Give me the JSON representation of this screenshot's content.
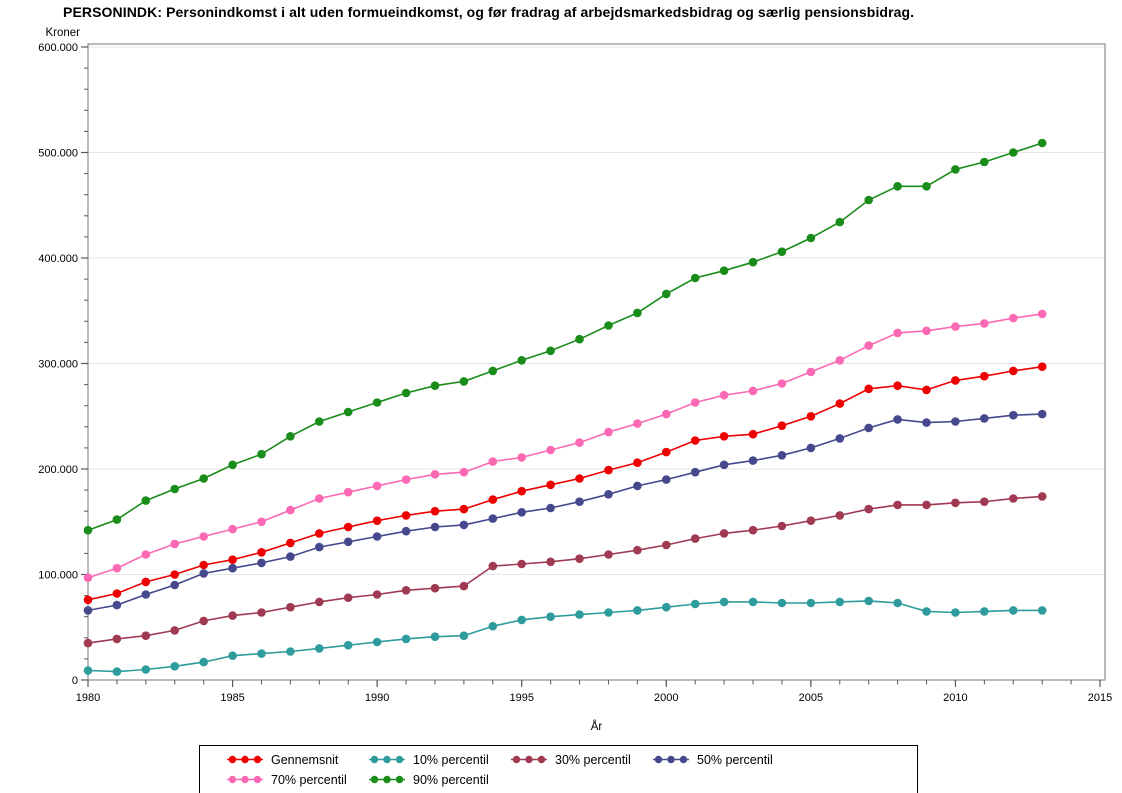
{
  "title": "PERSONINDK: Personindkomst i alt uden formueindkomst, og før fradrag af arbejdsmarkedsbidrag og særlig pensionsbidrag.",
  "chart_data": {
    "type": "line",
    "title": "PERSONINDK: Personindkomst i alt uden formueindkomst, og før fradrag af arbejdsmarkedsbidrag og særlig pensionsbidrag.",
    "xlabel": "År",
    "ylabel": "Kroner",
    "grid": "horizontal",
    "legend_position": "bottom",
    "xlim": [
      1980,
      2015
    ],
    "ylim": [
      0,
      600000
    ],
    "x_major_ticks": [
      1980,
      1985,
      1990,
      1995,
      2000,
      2005,
      2010,
      2015
    ],
    "y_major_tick_values": [
      0,
      100000,
      200000,
      300000,
      400000,
      500000,
      600000
    ],
    "y_major_tick_labels": [
      "0",
      "100.000",
      "200.000",
      "300.000",
      "400.000",
      "500.000",
      "600.000"
    ],
    "y_minor_tick_step": 20000,
    "years": [
      1980,
      1981,
      1982,
      1983,
      1984,
      1985,
      1986,
      1987,
      1988,
      1989,
      1990,
      1991,
      1992,
      1993,
      1994,
      1995,
      1996,
      1997,
      1998,
      1999,
      2000,
      2001,
      2002,
      2003,
      2004,
      2005,
      2006,
      2007,
      2008,
      2009,
      2010,
      2011,
      2012,
      2013
    ],
    "series": [
      {
        "name": "Gennemsnit",
        "color": "#EE0000",
        "values": [
          76000,
          82000,
          93000,
          100000,
          109000,
          114000,
          121000,
          130000,
          139000,
          145000,
          151000,
          156000,
          160000,
          162000,
          171000,
          179000,
          185000,
          191000,
          199000,
          206000,
          216000,
          227000,
          231000,
          233000,
          241000,
          250000,
          262000,
          276000,
          279000,
          275000,
          284000,
          288000,
          293000,
          297000
        ]
      },
      {
        "name": "10% percentil",
        "color": "#2E9C9C",
        "values": [
          9000,
          8000,
          10000,
          13000,
          17000,
          23000,
          25000,
          27000,
          30000,
          33000,
          36000,
          39000,
          41000,
          42000,
          51000,
          57000,
          60000,
          62000,
          64000,
          66000,
          69000,
          72000,
          74000,
          74000,
          73000,
          73000,
          74000,
          75000,
          73000,
          65000,
          64000,
          65000,
          66000,
          66000
        ]
      },
      {
        "name": "30% percentil",
        "color": "#A03A52",
        "values": [
          35000,
          39000,
          42000,
          47000,
          56000,
          61000,
          64000,
          69000,
          74000,
          78000,
          81000,
          85000,
          87000,
          89000,
          108000,
          110000,
          112000,
          115000,
          119000,
          123000,
          128000,
          134000,
          139000,
          142000,
          146000,
          151000,
          156000,
          162000,
          166000,
          166000,
          168000,
          169000,
          172000,
          174000
        ]
      },
      {
        "name": "50% percentil",
        "color": "#45488C",
        "values": [
          66000,
          71000,
          81000,
          90000,
          101000,
          106000,
          111000,
          117000,
          126000,
          131000,
          136000,
          141000,
          145000,
          147000,
          153000,
          159000,
          163000,
          169000,
          176000,
          184000,
          190000,
          197000,
          204000,
          208000,
          213000,
          220000,
          229000,
          239000,
          247000,
          244000,
          245000,
          248000,
          251000,
          252000
        ]
      },
      {
        "name": "70% percentil",
        "color": "#FB69B4",
        "values": [
          97000,
          106000,
          119000,
          129000,
          136000,
          143000,
          150000,
          161000,
          172000,
          178000,
          184000,
          190000,
          195000,
          197000,
          207000,
          211000,
          218000,
          225000,
          235000,
          243000,
          252000,
          263000,
          270000,
          274000,
          281000,
          292000,
          303000,
          317000,
          329000,
          331000,
          335000,
          338000,
          343000,
          347000
        ]
      },
      {
        "name": "90% percentil",
        "color": "#1A8C1A",
        "values": [
          142000,
          152000,
          170000,
          181000,
          191000,
          204000,
          214000,
          231000,
          245000,
          254000,
          263000,
          272000,
          279000,
          283000,
          293000,
          303000,
          312000,
          323000,
          336000,
          348000,
          366000,
          381000,
          388000,
          396000,
          406000,
          419000,
          434000,
          455000,
          468000,
          468000,
          484000,
          491000,
          500000,
          509000
        ]
      }
    ],
    "style": {
      "frame_color": "#8C8C8C",
      "gridline_color": "#E6E6E6",
      "tick_color": "#5A5A5A",
      "background": "#FFFFFF"
    }
  }
}
